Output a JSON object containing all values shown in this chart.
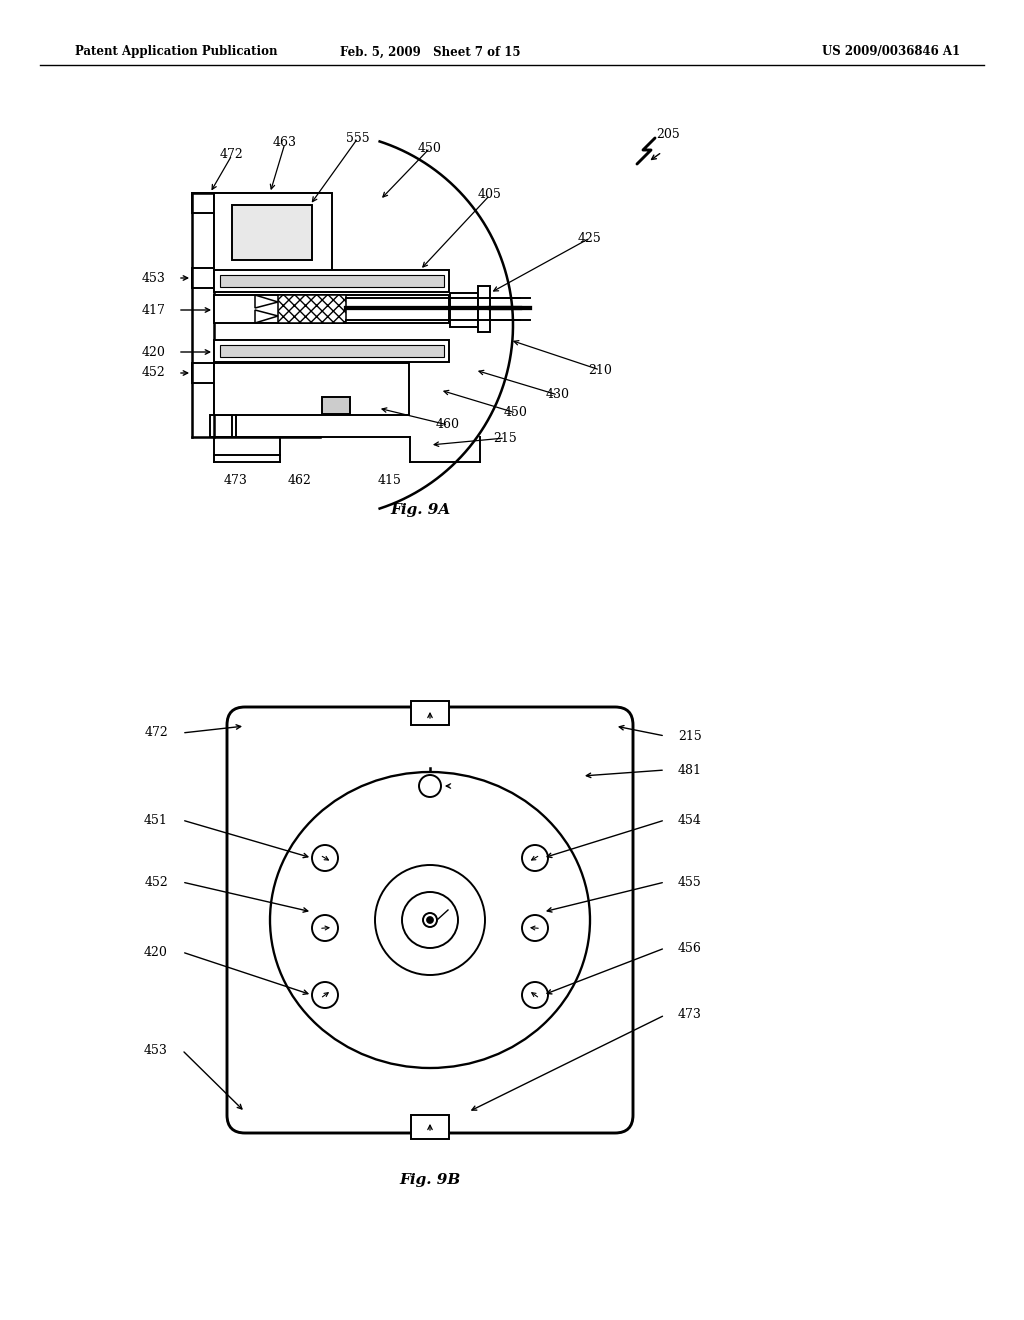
{
  "header_left": "Patent Application Publication",
  "header_center": "Feb. 5, 2009   Sheet 7 of 15",
  "header_right": "US 2009/0036846 A1",
  "fig9a_label": "Fig. 9A",
  "fig9b_label": "Fig. 9B",
  "background_color": "#ffffff",
  "line_color": "#000000"
}
